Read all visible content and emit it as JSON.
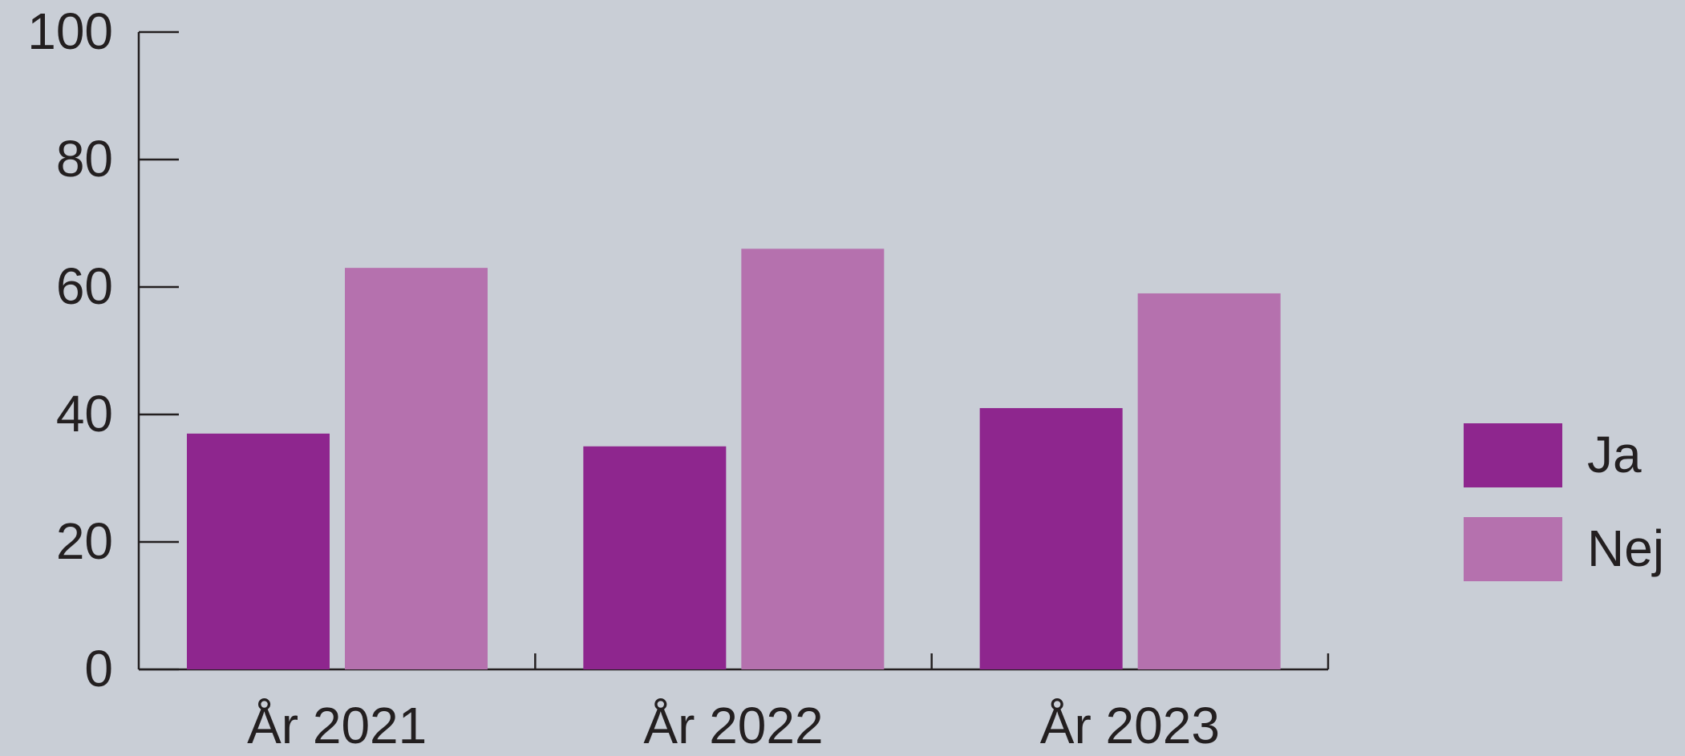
{
  "chart_data": {
    "type": "bar",
    "categories": [
      "År 2021",
      "År 2022",
      "År 2023"
    ],
    "series": [
      {
        "name": "Ja",
        "color": "#8e268e",
        "values": [
          37,
          35,
          41
        ]
      },
      {
        "name": "Nej",
        "color": "#b571ae",
        "values": [
          63,
          66,
          59
        ]
      }
    ],
    "ylim": [
      0,
      100
    ],
    "yticks": [
      0,
      20,
      40,
      60,
      80,
      100
    ],
    "grid": false,
    "legend": "right"
  }
}
